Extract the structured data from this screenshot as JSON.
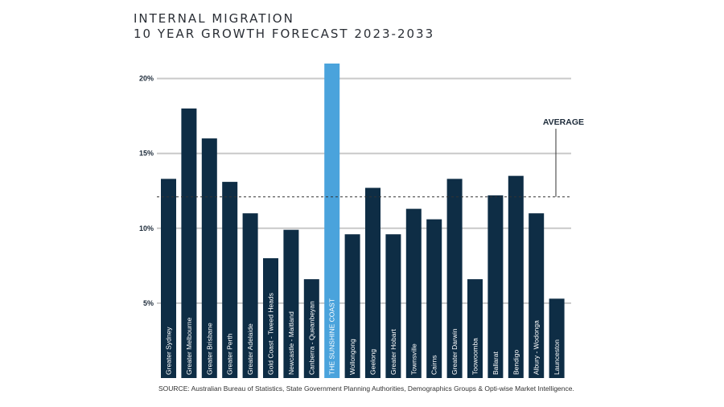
{
  "chart_data": {
    "type": "bar",
    "title_line1": "INTERNAL MIGRATION",
    "title_line2": "10 YEAR GROWTH FORECAST 2023-2033",
    "categories": [
      "Greater Sydney",
      "Greater Melbourne",
      "Greater Brisbane",
      "Greater Perth",
      "Greater Adelaide",
      "Gold Coast - Tweed Heads",
      "Newcastle - Maitland",
      "Canberra - Queanbeyan",
      "THE SUNSHINE COAST",
      "Wollongong",
      "Geelong",
      "Greater Hobart",
      "Townsville",
      "Cairns",
      "Greater Darwin",
      "Toowoomba",
      "Ballarat",
      "Bendigo",
      "Albury - Wodonga",
      "Launceston"
    ],
    "values": [
      13.3,
      18.0,
      16.0,
      13.1,
      11.0,
      8.0,
      9.9,
      6.6,
      21.0,
      9.6,
      12.7,
      9.6,
      11.3,
      10.6,
      13.3,
      6.6,
      12.2,
      13.5,
      11.0,
      5.3
    ],
    "highlight_index": 8,
    "yticks": [
      5,
      10,
      15,
      20
    ],
    "ytick_labels": [
      "5%",
      "10%",
      "15%",
      "20%"
    ],
    "ylim": [
      0,
      21
    ],
    "average": 12.1,
    "average_label": "AVERAGE",
    "colors": {
      "bar": "#0e2d45",
      "highlight": "#4aa3dc",
      "grid": "#c9c9c9",
      "average_line": "#333333"
    },
    "source": "SOURCE: Australian Bureau of Statistics, State Government Planning Authorities, Demographics Groups & Opti-wise Market Intelligence."
  }
}
